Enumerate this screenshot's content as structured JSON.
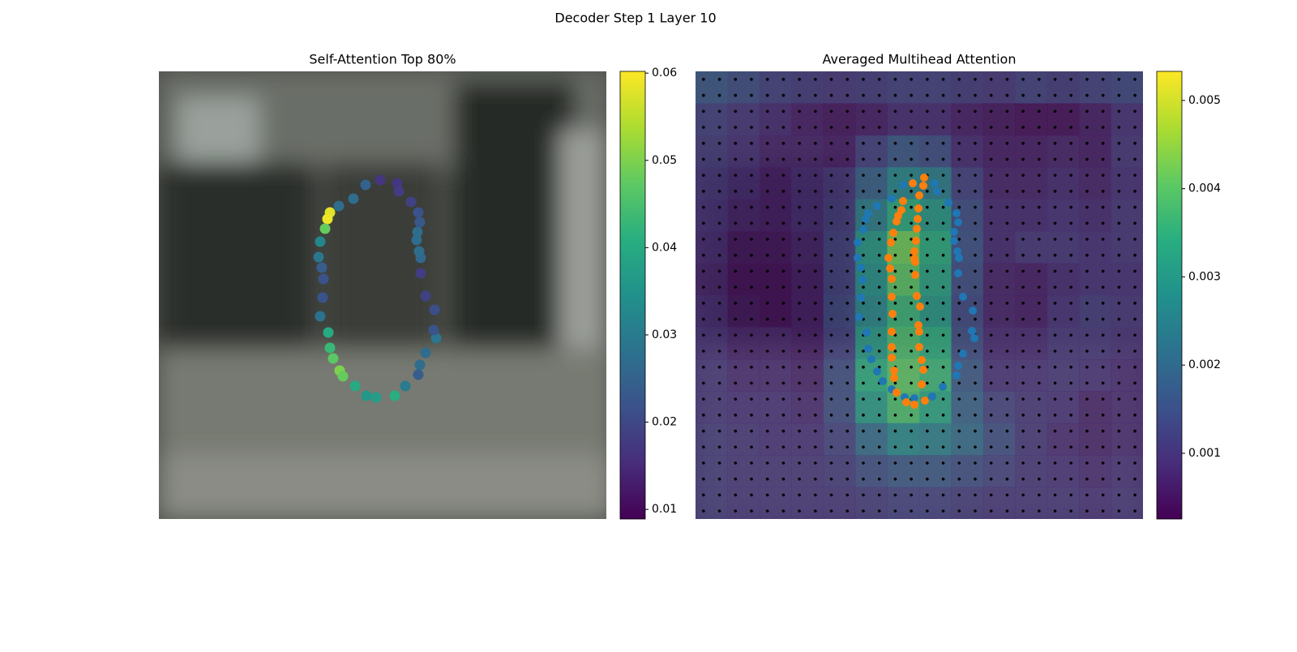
{
  "title": "Decoder Step 1 Layer 10",
  "chart_data": [
    {
      "type": "scatter",
      "title": "Self-Attention Top 80%",
      "colormap": "viridis",
      "xlim": [
        0,
        552
      ],
      "ylim": [
        552,
        0
      ],
      "x": [
        273,
        294,
        296,
        255,
        240,
        222,
        211,
        208,
        205,
        199,
        197,
        201,
        203,
        202,
        199,
        209,
        211,
        215,
        223,
        227,
        242,
        256,
        268,
        291,
        304,
        320,
        322,
        329,
        342,
        339,
        340,
        329,
        323,
        323,
        321,
        318,
        319,
        322,
        320,
        311
      ],
      "y": [
        134,
        138,
        148,
        140,
        157,
        166,
        174,
        182,
        194,
        210,
        229,
        242,
        256,
        279,
        302,
        322,
        341,
        354,
        369,
        376,
        388,
        400,
        402,
        400,
        388,
        374,
        362,
        347,
        329,
        319,
        294,
        277,
        249,
        230,
        222,
        208,
        198,
        186,
        174,
        161
      ],
      "values": [
        0.017,
        0.017,
        0.018,
        0.025,
        0.027,
        0.027,
        0.058,
        0.059,
        0.048,
        0.032,
        0.029,
        0.024,
        0.022,
        0.022,
        0.028,
        0.04,
        0.043,
        0.047,
        0.05,
        0.048,
        0.04,
        0.036,
        0.037,
        0.041,
        0.03,
        0.024,
        0.027,
        0.027,
        0.029,
        0.022,
        0.021,
        0.019,
        0.018,
        0.026,
        0.027,
        0.027,
        0.027,
        0.023,
        0.022,
        0.019
      ],
      "colorbar": {
        "clim": [
          0.0089,
          0.0602
        ],
        "ticks": [
          0.01,
          0.02,
          0.03,
          0.04,
          0.05,
          0.06
        ]
      }
    },
    {
      "type": "heatmap",
      "title": "Averaged Multihead Attention",
      "colormap": "viridis",
      "xlim": [
        0,
        552
      ],
      "ylim": [
        552,
        0
      ],
      "heatmap": [
        [
          0.0016,
          0.0014,
          0.0012,
          0.0011,
          0.001,
          0.0011,
          0.0012,
          0.0012,
          0.0011,
          0.001,
          0.0012,
          0.0011,
          0.0012,
          0.0013
        ],
        [
          0.0012,
          0.001,
          0.0008,
          0.0006,
          0.0005,
          0.0006,
          0.0008,
          0.0008,
          0.0006,
          0.0005,
          0.0004,
          0.0004,
          0.0006,
          0.0009
        ],
        [
          0.0011,
          0.0009,
          0.0007,
          0.0007,
          0.0006,
          0.0012,
          0.0016,
          0.0014,
          0.0008,
          0.0006,
          0.0006,
          0.0007,
          0.0006,
          0.001
        ],
        [
          0.001,
          0.0008,
          0.0006,
          0.0008,
          0.001,
          0.0018,
          0.0026,
          0.0024,
          0.0012,
          0.0007,
          0.0007,
          0.0008,
          0.0007,
          0.0009
        ],
        [
          0.0009,
          0.0007,
          0.0006,
          0.0008,
          0.0011,
          0.0024,
          0.0034,
          0.003,
          0.0014,
          0.0008,
          0.0008,
          0.0009,
          0.0008,
          0.001
        ],
        [
          0.0008,
          0.0005,
          0.0005,
          0.0007,
          0.0012,
          0.003,
          0.0042,
          0.0034,
          0.0015,
          0.0008,
          0.001,
          0.001,
          0.0009,
          0.001
        ],
        [
          0.0007,
          0.0004,
          0.0004,
          0.0006,
          0.0012,
          0.0028,
          0.004,
          0.0032,
          0.0014,
          0.0007,
          0.0006,
          0.0008,
          0.0009,
          0.0009
        ],
        [
          0.0008,
          0.0005,
          0.0004,
          0.0006,
          0.0013,
          0.0026,
          0.0036,
          0.003,
          0.0013,
          0.0007,
          0.0006,
          0.0009,
          0.0011,
          0.001
        ],
        [
          0.0009,
          0.0007,
          0.0007,
          0.0006,
          0.0012,
          0.003,
          0.0038,
          0.0034,
          0.0014,
          0.0008,
          0.0008,
          0.001,
          0.001,
          0.0009
        ],
        [
          0.001,
          0.0008,
          0.0008,
          0.0007,
          0.0014,
          0.0034,
          0.004,
          0.0036,
          0.0016,
          0.0009,
          0.0009,
          0.001,
          0.0009,
          0.0008
        ],
        [
          0.001,
          0.0009,
          0.0009,
          0.0008,
          0.0014,
          0.003,
          0.0038,
          0.0032,
          0.0018,
          0.0012,
          0.001,
          0.0009,
          0.0007,
          0.0008
        ],
        [
          0.0011,
          0.001,
          0.0009,
          0.0009,
          0.0012,
          0.002,
          0.0026,
          0.0024,
          0.002,
          0.0014,
          0.001,
          0.0008,
          0.0007,
          0.0008
        ],
        [
          0.0011,
          0.001,
          0.001,
          0.001,
          0.0011,
          0.0014,
          0.0016,
          0.0016,
          0.0014,
          0.0012,
          0.001,
          0.0009,
          0.0008,
          0.0009
        ],
        [
          0.0011,
          0.001,
          0.001,
          0.001,
          0.001,
          0.0011,
          0.0012,
          0.0012,
          0.0011,
          0.001,
          0.001,
          0.001,
          0.0009,
          0.001
        ]
      ],
      "series": [
        {
          "color": "#1f77b4",
          "x": [
            256,
            269,
            295,
            298,
            312,
            322,
            324,
            319,
            319,
            323,
            325,
            324,
            330,
            342,
            341,
            344,
            330,
            324,
            322,
            305,
            292,
            270,
            258,
            242,
            231,
            224,
            217,
            213,
            211,
            202,
            204,
            206,
            204,
            200,
            200,
            207,
            210,
            213,
            224,
            242
          ],
          "y": [
            140,
            138,
            138,
            148,
            162,
            175,
            186,
            198,
            209,
            222,
            230,
            249,
            278,
            295,
            320,
            329,
            348,
            363,
            375,
            389,
            401,
            403,
            402,
            392,
            382,
            370,
            355,
            342,
            322,
            303,
            279,
            257,
            242,
            230,
            211,
            195,
            182,
            175,
            166,
            157
          ]
        },
        {
          "color": "#ff7f0e",
          "x": [
            282,
            281,
            268,
            276,
            256,
            254,
            250,
            248,
            275,
            274,
            244,
            273,
            272,
            241,
            270,
            238,
            270,
            271,
            240,
            242,
            271,
            242,
            273,
            277,
            243,
            275,
            276,
            242,
            242,
            276,
            279,
            242,
            245,
            281,
            245,
            279,
            248,
            283,
            260,
            270
          ],
          "y": [
            131,
            141,
            138,
            153,
            160,
            171,
            178,
            185,
            169,
            182,
            199,
            194,
            209,
            211,
            222,
            230,
            231,
            235,
            243,
            256,
            251,
            278,
            277,
            290,
            299,
            313,
            321,
            321,
            340,
            340,
            356,
            353,
            369,
            368,
            378,
            386,
            396,
            406,
            408,
            411
          ]
        }
      ],
      "colorbar": {
        "clim": [
          0.000255,
          0.00533
        ],
        "ticks": [
          0.001,
          0.002,
          0.003,
          0.004,
          0.005
        ]
      }
    }
  ]
}
